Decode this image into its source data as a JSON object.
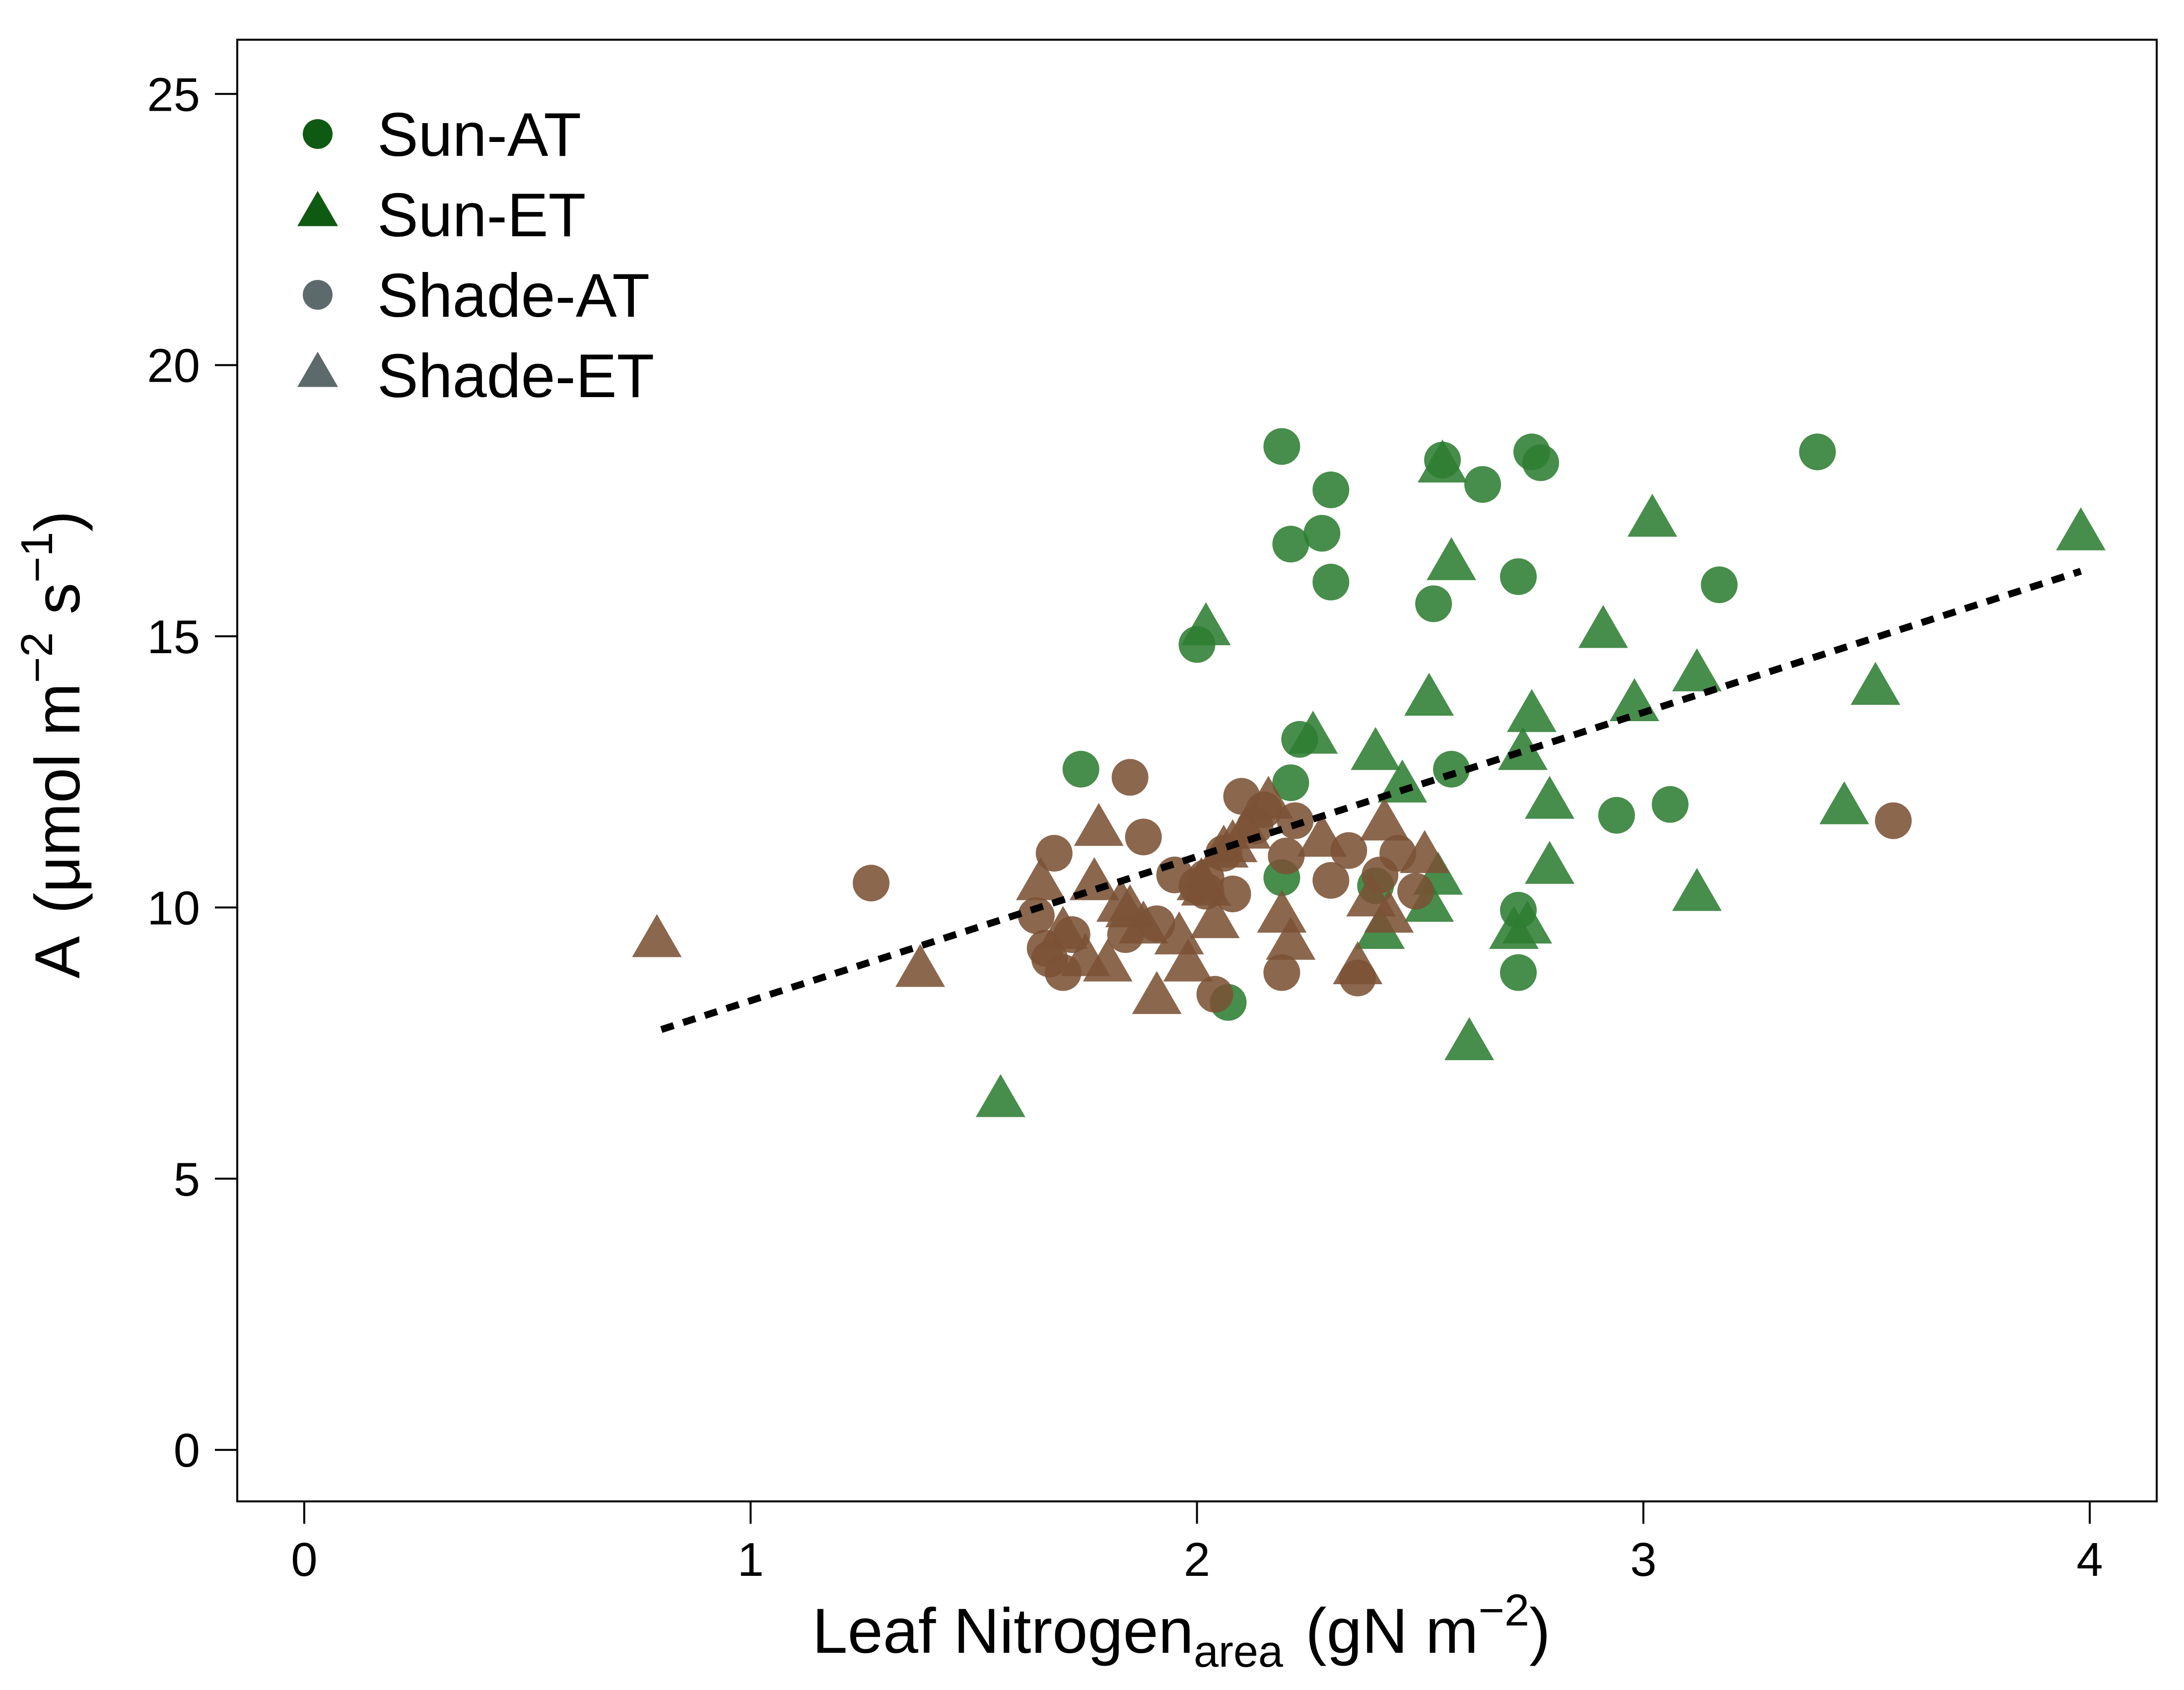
{
  "chart_data": {
    "type": "scatter",
    "xlabel_main": "Leaf Nitrogen",
    "xlabel_sub": "area",
    "xlabel_units": "(gN m",
    "xlabel_units_exp": "−2",
    "xlabel_units_close": ")",
    "ylabel_main": "A",
    "ylabel_units_a": "(μmol m",
    "ylabel_units_exp1": "−2",
    "ylabel_units_b": " s",
    "ylabel_units_exp2": "−1",
    "ylabel_units_close": ")",
    "xlim": [
      -0.15,
      4.15
    ],
    "ylim": [
      -0.95,
      26.0
    ],
    "x_ticks": [
      0,
      1,
      2,
      3,
      4
    ],
    "x_tick_labels": [
      "0",
      "1",
      "2",
      "3",
      "4"
    ],
    "y_ticks": [
      0,
      5,
      10,
      15,
      20,
      25
    ],
    "y_tick_labels": [
      "0",
      "5",
      "10",
      "15",
      "20",
      "25"
    ],
    "grid": false,
    "legend_position": "top-left",
    "legend": [
      {
        "label": "Sun-AT",
        "marker": "circle",
        "color": "#0f5a12"
      },
      {
        "label": "Sun-ET",
        "marker": "triangle",
        "color": "#0f5a12"
      },
      {
        "label": "Shade-AT",
        "marker": "circle",
        "color": "#5d6a6b"
      },
      {
        "label": "Shade-ET",
        "marker": "triangle",
        "color": "#5d6a6b"
      }
    ],
    "point_colors": {
      "sun": "#2e7d32",
      "shade": "#7b5236"
    },
    "point_opacity": 0.88,
    "fit_line": {
      "x": [
        0.8,
        3.98
      ],
      "y": [
        7.75,
        16.2
      ],
      "style": "dotted",
      "color": "#000000"
    },
    "series": [
      {
        "name": "Sun-AT",
        "group": "sun",
        "marker": "circle",
        "x": [
          2.19,
          2.21,
          2.3,
          2.28,
          2.3,
          2.0,
          1.74,
          2.23,
          2.21,
          2.19,
          2.07,
          2.53,
          2.55,
          2.64,
          2.75,
          2.77,
          2.72,
          2.57,
          2.94,
          3.06,
          3.17,
          3.39,
          2.4,
          2.72,
          2.72
        ],
        "y": [
          18.5,
          16.7,
          17.7,
          16.9,
          16.0,
          14.85,
          12.55,
          13.1,
          12.3,
          10.55,
          8.25,
          15.6,
          18.25,
          17.8,
          18.4,
          18.2,
          16.1,
          12.55,
          11.7,
          11.9,
          15.95,
          18.4,
          10.4,
          9.95,
          8.8
        ]
      },
      {
        "name": "Sun-ET",
        "group": "sun",
        "marker": "triangle",
        "x": [
          1.56,
          2.02,
          2.26,
          2.4,
          2.46,
          2.52,
          2.55,
          2.57,
          2.54,
          2.52,
          2.61,
          2.71,
          2.74,
          2.75,
          2.73,
          2.79,
          2.79,
          2.91,
          2.98,
          3.02,
          3.12,
          3.12,
          3.45,
          3.52,
          3.98,
          2.41
        ],
        "y": [
          6.4,
          15.1,
          13.1,
          12.8,
          12.2,
          13.8,
          18.1,
          16.3,
          10.5,
          10.0,
          7.45,
          9.5,
          9.6,
          13.5,
          12.8,
          11.9,
          10.7,
          15.05,
          13.7,
          17.1,
          14.25,
          10.2,
          11.8,
          14.0,
          16.85,
          9.5
        ]
      },
      {
        "name": "Shade-AT",
        "group": "shade",
        "marker": "circle",
        "x": [
          1.27,
          1.64,
          1.66,
          1.67,
          1.7,
          1.72,
          1.85,
          1.88,
          1.91,
          1.95,
          2.0,
          2.02,
          2.04,
          2.06,
          2.08,
          2.1,
          2.13,
          2.15,
          2.19,
          2.2,
          2.22,
          2.3,
          2.34,
          2.36,
          2.41,
          2.45,
          2.49,
          3.56,
          1.68,
          1.84,
          2.02
        ],
        "y": [
          10.45,
          9.85,
          9.25,
          9.05,
          8.8,
          9.5,
          12.4,
          11.3,
          9.7,
          10.6,
          10.4,
          10.3,
          8.4,
          11.0,
          10.25,
          12.05,
          11.5,
          11.8,
          8.8,
          10.95,
          11.6,
          10.5,
          11.05,
          8.7,
          10.6,
          11.0,
          10.3,
          11.6,
          11.0,
          9.5,
          10.55
        ]
      },
      {
        "name": "Shade-ET",
        "group": "shade",
        "marker": "triangle",
        "x": [
          0.79,
          1.38,
          1.65,
          1.7,
          1.75,
          1.77,
          1.78,
          1.8,
          1.85,
          1.88,
          1.91,
          1.96,
          1.98,
          2.01,
          2.02,
          2.04,
          2.06,
          2.08,
          2.11,
          2.16,
          2.19,
          2.21,
          2.28,
          2.36,
          2.39,
          2.43,
          2.51,
          2.42,
          1.83
        ],
        "y": [
          9.35,
          8.8,
          10.4,
          9.5,
          9.0,
          10.4,
          11.4,
          8.9,
          9.9,
          9.6,
          8.3,
          9.4,
          8.9,
          10.4,
          10.3,
          9.7,
          11.0,
          11.1,
          11.35,
          11.9,
          9.8,
          9.3,
          11.2,
          8.85,
          10.1,
          9.8,
          10.9,
          11.5,
          10.0
        ]
      }
    ]
  }
}
